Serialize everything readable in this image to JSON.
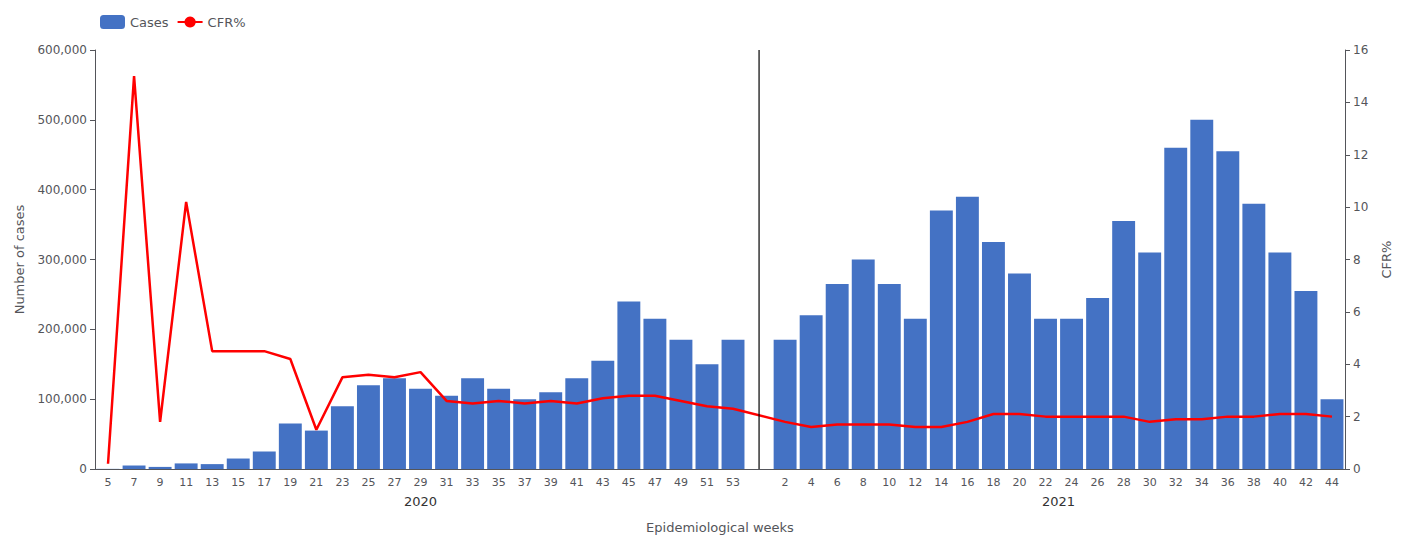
{
  "chart_data": {
    "type": "bar",
    "xlabel": "Epidemiological weeks",
    "ylabel": "Number of cases",
    "y2label": "CFR%",
    "annotations": [
      "2020",
      "2021"
    ],
    "categories": [
      "5",
      "7",
      "9",
      "11",
      "13",
      "15",
      "17",
      "19",
      "21",
      "23",
      "25",
      "27",
      "29",
      "31",
      "33",
      "35",
      "37",
      "39",
      "41",
      "43",
      "45",
      "47",
      "49",
      "51",
      "53",
      null,
      "2",
      "4",
      "6",
      "8",
      "10",
      "12",
      "14",
      "16",
      "18",
      "20",
      "22",
      "24",
      "26",
      "28",
      "30",
      "32",
      "34",
      "36",
      "38",
      "40",
      "42",
      "44"
    ],
    "series": [
      {
        "name": "Cases",
        "type": "bar",
        "color": "#4472C4",
        "values": [
          200,
          5000,
          3000,
          8000,
          7000,
          15000,
          25000,
          65000,
          55000,
          90000,
          120000,
          130000,
          115000,
          105000,
          130000,
          115000,
          100000,
          110000,
          130000,
          155000,
          240000,
          215000,
          185000,
          150000,
          185000,
          null,
          185000,
          220000,
          265000,
          300000,
          265000,
          215000,
          370000,
          390000,
          325000,
          280000,
          215000,
          215000,
          245000,
          355000,
          310000,
          460000,
          500000,
          455000,
          380000,
          310000,
          255000,
          100000
        ]
      },
      {
        "name": "CFR%",
        "type": "line",
        "axis": "y2",
        "color": "#FF0000",
        "values": [
          0.2,
          15.0,
          1.8,
          10.2,
          4.5,
          4.5,
          4.5,
          4.2,
          1.5,
          3.5,
          3.6,
          3.5,
          3.7,
          2.6,
          2.5,
          2.6,
          2.5,
          2.6,
          2.5,
          2.7,
          2.8,
          2.8,
          2.6,
          2.4,
          2.3,
          null,
          1.8,
          1.6,
          1.7,
          1.7,
          1.7,
          1.6,
          1.6,
          1.8,
          2.1,
          2.1,
          2.0,
          2.0,
          2.0,
          2.0,
          1.8,
          1.9,
          1.9,
          2.0,
          2.0,
          2.1,
          2.1,
          2.0
        ]
      }
    ],
    "ylim": [
      0,
      600000
    ],
    "yticks": [
      0,
      {
        "value": 100000,
        "label": "100,000"
      },
      {
        "value": 200000,
        "label": "200,000"
      },
      {
        "value": 300000,
        "label": "300,000"
      },
      {
        "value": 400000,
        "label": "400,000"
      },
      {
        "value": 500000,
        "label": "500,000"
      },
      {
        "value": 600000,
        "label": "600,000"
      }
    ],
    "y2lim": [
      0,
      16
    ],
    "y2ticks": [
      0,
      2,
      4,
      6,
      8,
      10,
      12,
      14,
      16
    ],
    "grid": false,
    "legend": "upper left"
  }
}
